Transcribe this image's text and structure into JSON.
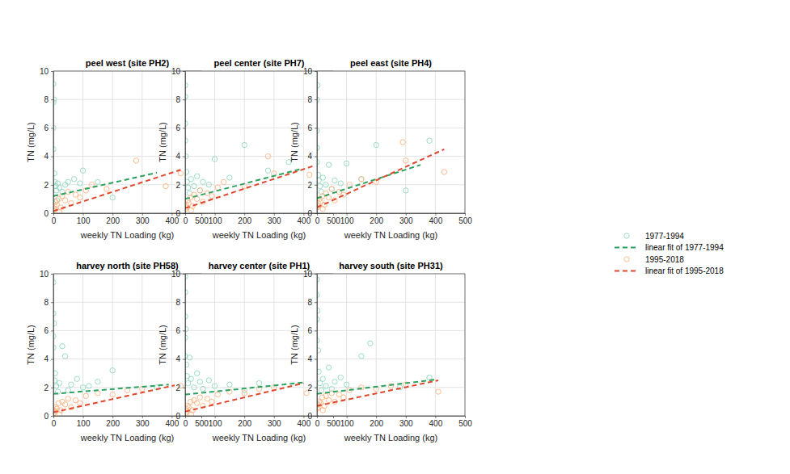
{
  "chart_data": [
    {
      "type": "scatter",
      "title": "peel west (site PH2)",
      "x_label": "weekly TN Loading (kg)",
      "y_label": "TN (mg/L)",
      "xlim": [
        0,
        500
      ],
      "ylim": [
        0,
        10
      ],
      "xticks": [
        0,
        100,
        200,
        300,
        400,
        500
      ],
      "yticks": [
        0,
        2,
        4,
        6,
        8,
        10
      ],
      "grid": true,
      "series": [
        {
          "color": "#8fd8c0",
          "marker": "circle",
          "x": [
            0,
            0,
            0,
            0,
            2,
            3,
            5,
            8,
            10,
            15,
            20,
            30,
            40,
            50,
            70,
            90,
            100,
            150,
            200,
            12
          ],
          "values": [
            9.1,
            7.8,
            6.0,
            4.5,
            8.0,
            2.8,
            2.2,
            1.9,
            1.6,
            2.1,
            1.8,
            1.5,
            2.0,
            2.2,
            2.4,
            2.1,
            3.0,
            2.2,
            1.1,
            0.9
          ]
        },
        {
          "type": "line",
          "color": "#2ca25f",
          "line_style": "dashed",
          "x": [
            0,
            350
          ],
          "values": [
            1.2,
            2.85
          ]
        },
        {
          "color": "#fdb380",
          "marker": "circle",
          "x": [
            1,
            3,
            5,
            8,
            12,
            18,
            25,
            30,
            40,
            50,
            60,
            75,
            90,
            110,
            130,
            180,
            280,
            380,
            430,
            20
          ],
          "values": [
            0.2,
            0.5,
            0.3,
            0.8,
            0.6,
            1.0,
            0.4,
            1.2,
            0.9,
            1.5,
            0.7,
            1.3,
            1.1,
            1.6,
            2.0,
            1.7,
            3.7,
            1.9,
            2.8,
            0.1
          ]
        },
        {
          "type": "line",
          "color": "#e0482e",
          "line_style": "dashed",
          "x": [
            0,
            430
          ],
          "values": [
            0.15,
            3.05
          ]
        }
      ]
    },
    {
      "type": "scatter",
      "title": "peel center (site PH7)",
      "x_label": "weekly TN Loading (kg)",
      "y_label": "TN (mg/L)",
      "xlim": [
        0,
        500
      ],
      "ylim": [
        0,
        10
      ],
      "xticks": [
        0,
        100,
        200,
        300,
        400,
        500
      ],
      "yticks": [
        0,
        2,
        4,
        6,
        8,
        10
      ],
      "grid": true,
      "series": [
        {
          "color": "#8fd8c0",
          "marker": "circle",
          "x": [
            0,
            0,
            0,
            0,
            2,
            4,
            6,
            10,
            15,
            20,
            30,
            40,
            50,
            60,
            80,
            100,
            150,
            200,
            280,
            350
          ],
          "values": [
            9.0,
            8.2,
            6.3,
            5.1,
            4.0,
            2.9,
            2.2,
            1.8,
            1.4,
            2.4,
            1.9,
            2.6,
            1.6,
            2.2,
            2.0,
            3.8,
            2.5,
            4.8,
            3.0,
            3.6
          ]
        },
        {
          "type": "line",
          "color": "#2ca25f",
          "line_style": "dashed",
          "x": [
            0,
            390
          ],
          "values": [
            1.0,
            3.1
          ]
        },
        {
          "color": "#fdb380",
          "marker": "circle",
          "x": [
            1,
            3,
            5,
            8,
            12,
            18,
            25,
            30,
            40,
            50,
            60,
            75,
            90,
            110,
            130,
            200,
            280,
            300,
            420,
            20
          ],
          "values": [
            0.3,
            0.6,
            0.4,
            0.9,
            0.7,
            1.1,
            0.5,
            1.3,
            1.0,
            1.6,
            0.8,
            1.4,
            1.2,
            1.8,
            2.2,
            1.9,
            4.0,
            2.8,
            2.7,
            0.2
          ]
        },
        {
          "type": "line",
          "color": "#e0482e",
          "line_style": "dashed",
          "x": [
            0,
            430
          ],
          "values": [
            0.35,
            3.3
          ]
        }
      ]
    },
    {
      "type": "scatter",
      "title": "peel east (site PH4)",
      "x_label": "weekly TN Loading (kg)",
      "y_label": "TN (mg/L)",
      "xlim": [
        0,
        500
      ],
      "ylim": [
        0,
        10
      ],
      "xticks": [
        0,
        100,
        200,
        300,
        400,
        500
      ],
      "yticks": [
        0,
        2,
        4,
        6,
        8,
        10
      ],
      "grid": true,
      "legend": "right",
      "series": [
        {
          "name": "1977-1994",
          "color": "#8fd8c0",
          "marker": "circle",
          "x": [
            0,
            0,
            0,
            0,
            2,
            4,
            6,
            10,
            15,
            20,
            30,
            40,
            50,
            60,
            80,
            100,
            150,
            200,
            300,
            380
          ],
          "values": [
            8.0,
            5.8,
            4.6,
            3.6,
            9.0,
            2.7,
            2.3,
            1.9,
            1.5,
            2.5,
            2.0,
            3.4,
            1.7,
            2.3,
            2.1,
            3.5,
            2.4,
            4.8,
            1.6,
            5.1
          ]
        },
        {
          "name": "linear fit of 1977-1994",
          "type": "line",
          "color": "#2ca25f",
          "line_style": "dashed",
          "x": [
            0,
            350
          ],
          "values": [
            1.05,
            3.4
          ]
        },
        {
          "name": "1995-2018",
          "color": "#fdb380",
          "marker": "circle",
          "x": [
            1,
            3,
            5,
            8,
            12,
            18,
            25,
            30,
            40,
            50,
            60,
            75,
            90,
            110,
            150,
            200,
            290,
            300,
            430,
            20
          ],
          "values": [
            0.4,
            0.7,
            0.5,
            1.0,
            0.8,
            1.2,
            0.6,
            1.4,
            1.1,
            1.7,
            0.9,
            1.5,
            1.3,
            2.0,
            2.4,
            2.2,
            5.0,
            3.7,
            2.9,
            0.3
          ]
        },
        {
          "name": "linear fit of 1995-2018",
          "type": "line",
          "color": "#e0482e",
          "line_style": "dashed",
          "x": [
            0,
            430
          ],
          "values": [
            0.4,
            4.5
          ]
        }
      ]
    },
    {
      "type": "scatter",
      "title": "harvey north (site PH58)",
      "x_label": "weekly TN Loading (kg)",
      "y_label": "TN (mg/L)",
      "xlim": [
        0,
        500
      ],
      "ylim": [
        0,
        10
      ],
      "xticks": [
        0,
        100,
        200,
        300,
        400,
        500
      ],
      "yticks": [
        0,
        2,
        4,
        6,
        8,
        10
      ],
      "grid": true,
      "series": [
        {
          "color": "#8fd8c0",
          "marker": "circle",
          "x": [
            0,
            0,
            0,
            0,
            2,
            4,
            6,
            10,
            15,
            20,
            30,
            40,
            50,
            60,
            80,
            100,
            120,
            150,
            200,
            350
          ],
          "values": [
            9.4,
            7.2,
            5.6,
            4.8,
            6.5,
            2.5,
            3.0,
            2.1,
            1.7,
            2.3,
            4.9,
            4.2,
            1.8,
            2.2,
            2.6,
            2.0,
            2.1,
            2.4,
            3.2,
            2.0
          ]
        },
        {
          "type": "line",
          "color": "#2ca25f",
          "line_style": "dashed",
          "x": [
            0,
            390
          ],
          "values": [
            1.55,
            2.2
          ]
        },
        {
          "color": "#fdb380",
          "marker": "circle",
          "x": [
            1,
            3,
            5,
            8,
            12,
            18,
            25,
            30,
            40,
            50,
            60,
            75,
            90,
            110,
            150,
            200,
            250,
            300,
            430,
            20
          ],
          "values": [
            0.2,
            0.4,
            0.3,
            0.6,
            0.5,
            0.9,
            0.4,
            1.0,
            0.8,
            1.2,
            0.6,
            1.1,
            0.9,
            1.4,
            1.6,
            1.5,
            1.8,
            1.9,
            2.1,
            0.1
          ]
        },
        {
          "type": "line",
          "color": "#e0482e",
          "line_style": "dashed",
          "x": [
            0,
            410
          ],
          "values": [
            0.25,
            2.15
          ]
        }
      ]
    },
    {
      "type": "scatter",
      "title": "harvey center (site PH1)",
      "x_label": "weekly TN Loading (kg)",
      "y_label": "TN (mg/L)",
      "xlim": [
        0,
        500
      ],
      "ylim": [
        0,
        10
      ],
      "xticks": [
        0,
        100,
        200,
        300,
        400,
        500
      ],
      "yticks": [
        0,
        2,
        4,
        6,
        8,
        10
      ],
      "grid": true,
      "series": [
        {
          "color": "#8fd8c0",
          "marker": "circle",
          "x": [
            0,
            0,
            0,
            0,
            0,
            2,
            4,
            6,
            10,
            15,
            20,
            30,
            40,
            50,
            60,
            80,
            100,
            150,
            200,
            250
          ],
          "values": [
            9.8,
            8.7,
            7.0,
            5.5,
            4.2,
            6.1,
            3.6,
            2.8,
            2.3,
            4.1,
            2.6,
            2.0,
            3.0,
            2.4,
            1.9,
            2.5,
            2.1,
            2.2,
            1.8,
            2.3
          ]
        },
        {
          "type": "line",
          "color": "#2ca25f",
          "line_style": "dashed",
          "x": [
            0,
            400
          ],
          "values": [
            1.5,
            2.35
          ]
        },
        {
          "color": "#fdb380",
          "marker": "circle",
          "x": [
            1,
            3,
            5,
            8,
            12,
            18,
            25,
            30,
            40,
            50,
            60,
            75,
            90,
            110,
            150,
            200,
            250,
            300,
            410,
            20
          ],
          "values": [
            0.2,
            0.5,
            0.3,
            0.7,
            0.6,
            1.0,
            0.4,
            1.1,
            0.9,
            1.3,
            0.7,
            1.2,
            1.0,
            1.5,
            1.7,
            1.6,
            1.9,
            2.0,
            1.6,
            0.1
          ]
        },
        {
          "type": "line",
          "color": "#e0482e",
          "line_style": "dashed",
          "x": [
            0,
            400
          ],
          "values": [
            0.3,
            2.3
          ]
        }
      ]
    },
    {
      "type": "scatter",
      "title": "harvey south (site PH31)",
      "x_label": "weekly TN Loading (kg)",
      "y_label": "TN (mg/L)",
      "xlim": [
        0,
        500
      ],
      "ylim": [
        0,
        10
      ],
      "xticks": [
        0,
        100,
        200,
        300,
        400,
        500
      ],
      "yticks": [
        0,
        2,
        4,
        6,
        8,
        10
      ],
      "grid": true,
      "series": [
        {
          "color": "#8fd8c0",
          "marker": "circle",
          "x": [
            0,
            0,
            0,
            0,
            2,
            4,
            6,
            10,
            15,
            20,
            30,
            40,
            50,
            60,
            80,
            100,
            150,
            180,
            280,
            380
          ],
          "values": [
            9.6,
            8.5,
            6.8,
            5.3,
            7.4,
            4.6,
            3.1,
            2.3,
            1.8,
            2.6,
            2.1,
            3.4,
            1.9,
            2.4,
            2.7,
            2.2,
            4.2,
            5.1,
            2.0,
            2.7
          ]
        },
        {
          "type": "line",
          "color": "#2ca25f",
          "line_style": "dashed",
          "x": [
            0,
            400
          ],
          "values": [
            1.55,
            2.55
          ]
        },
        {
          "color": "#fdb380",
          "marker": "circle",
          "x": [
            1,
            3,
            5,
            8,
            12,
            18,
            25,
            30,
            40,
            50,
            60,
            75,
            90,
            110,
            150,
            200,
            250,
            300,
            410,
            20
          ],
          "values": [
            0.5,
            0.8,
            0.6,
            1.0,
            0.9,
            1.3,
            0.7,
            1.4,
            1.1,
            1.6,
            1.0,
            1.5,
            1.3,
            1.8,
            2.0,
            1.9,
            2.1,
            2.2,
            1.7,
            0.4
          ]
        },
        {
          "type": "line",
          "color": "#e0482e",
          "line_style": "dashed",
          "x": [
            0,
            410
          ],
          "values": [
            0.7,
            2.5
          ]
        }
      ]
    }
  ]
}
